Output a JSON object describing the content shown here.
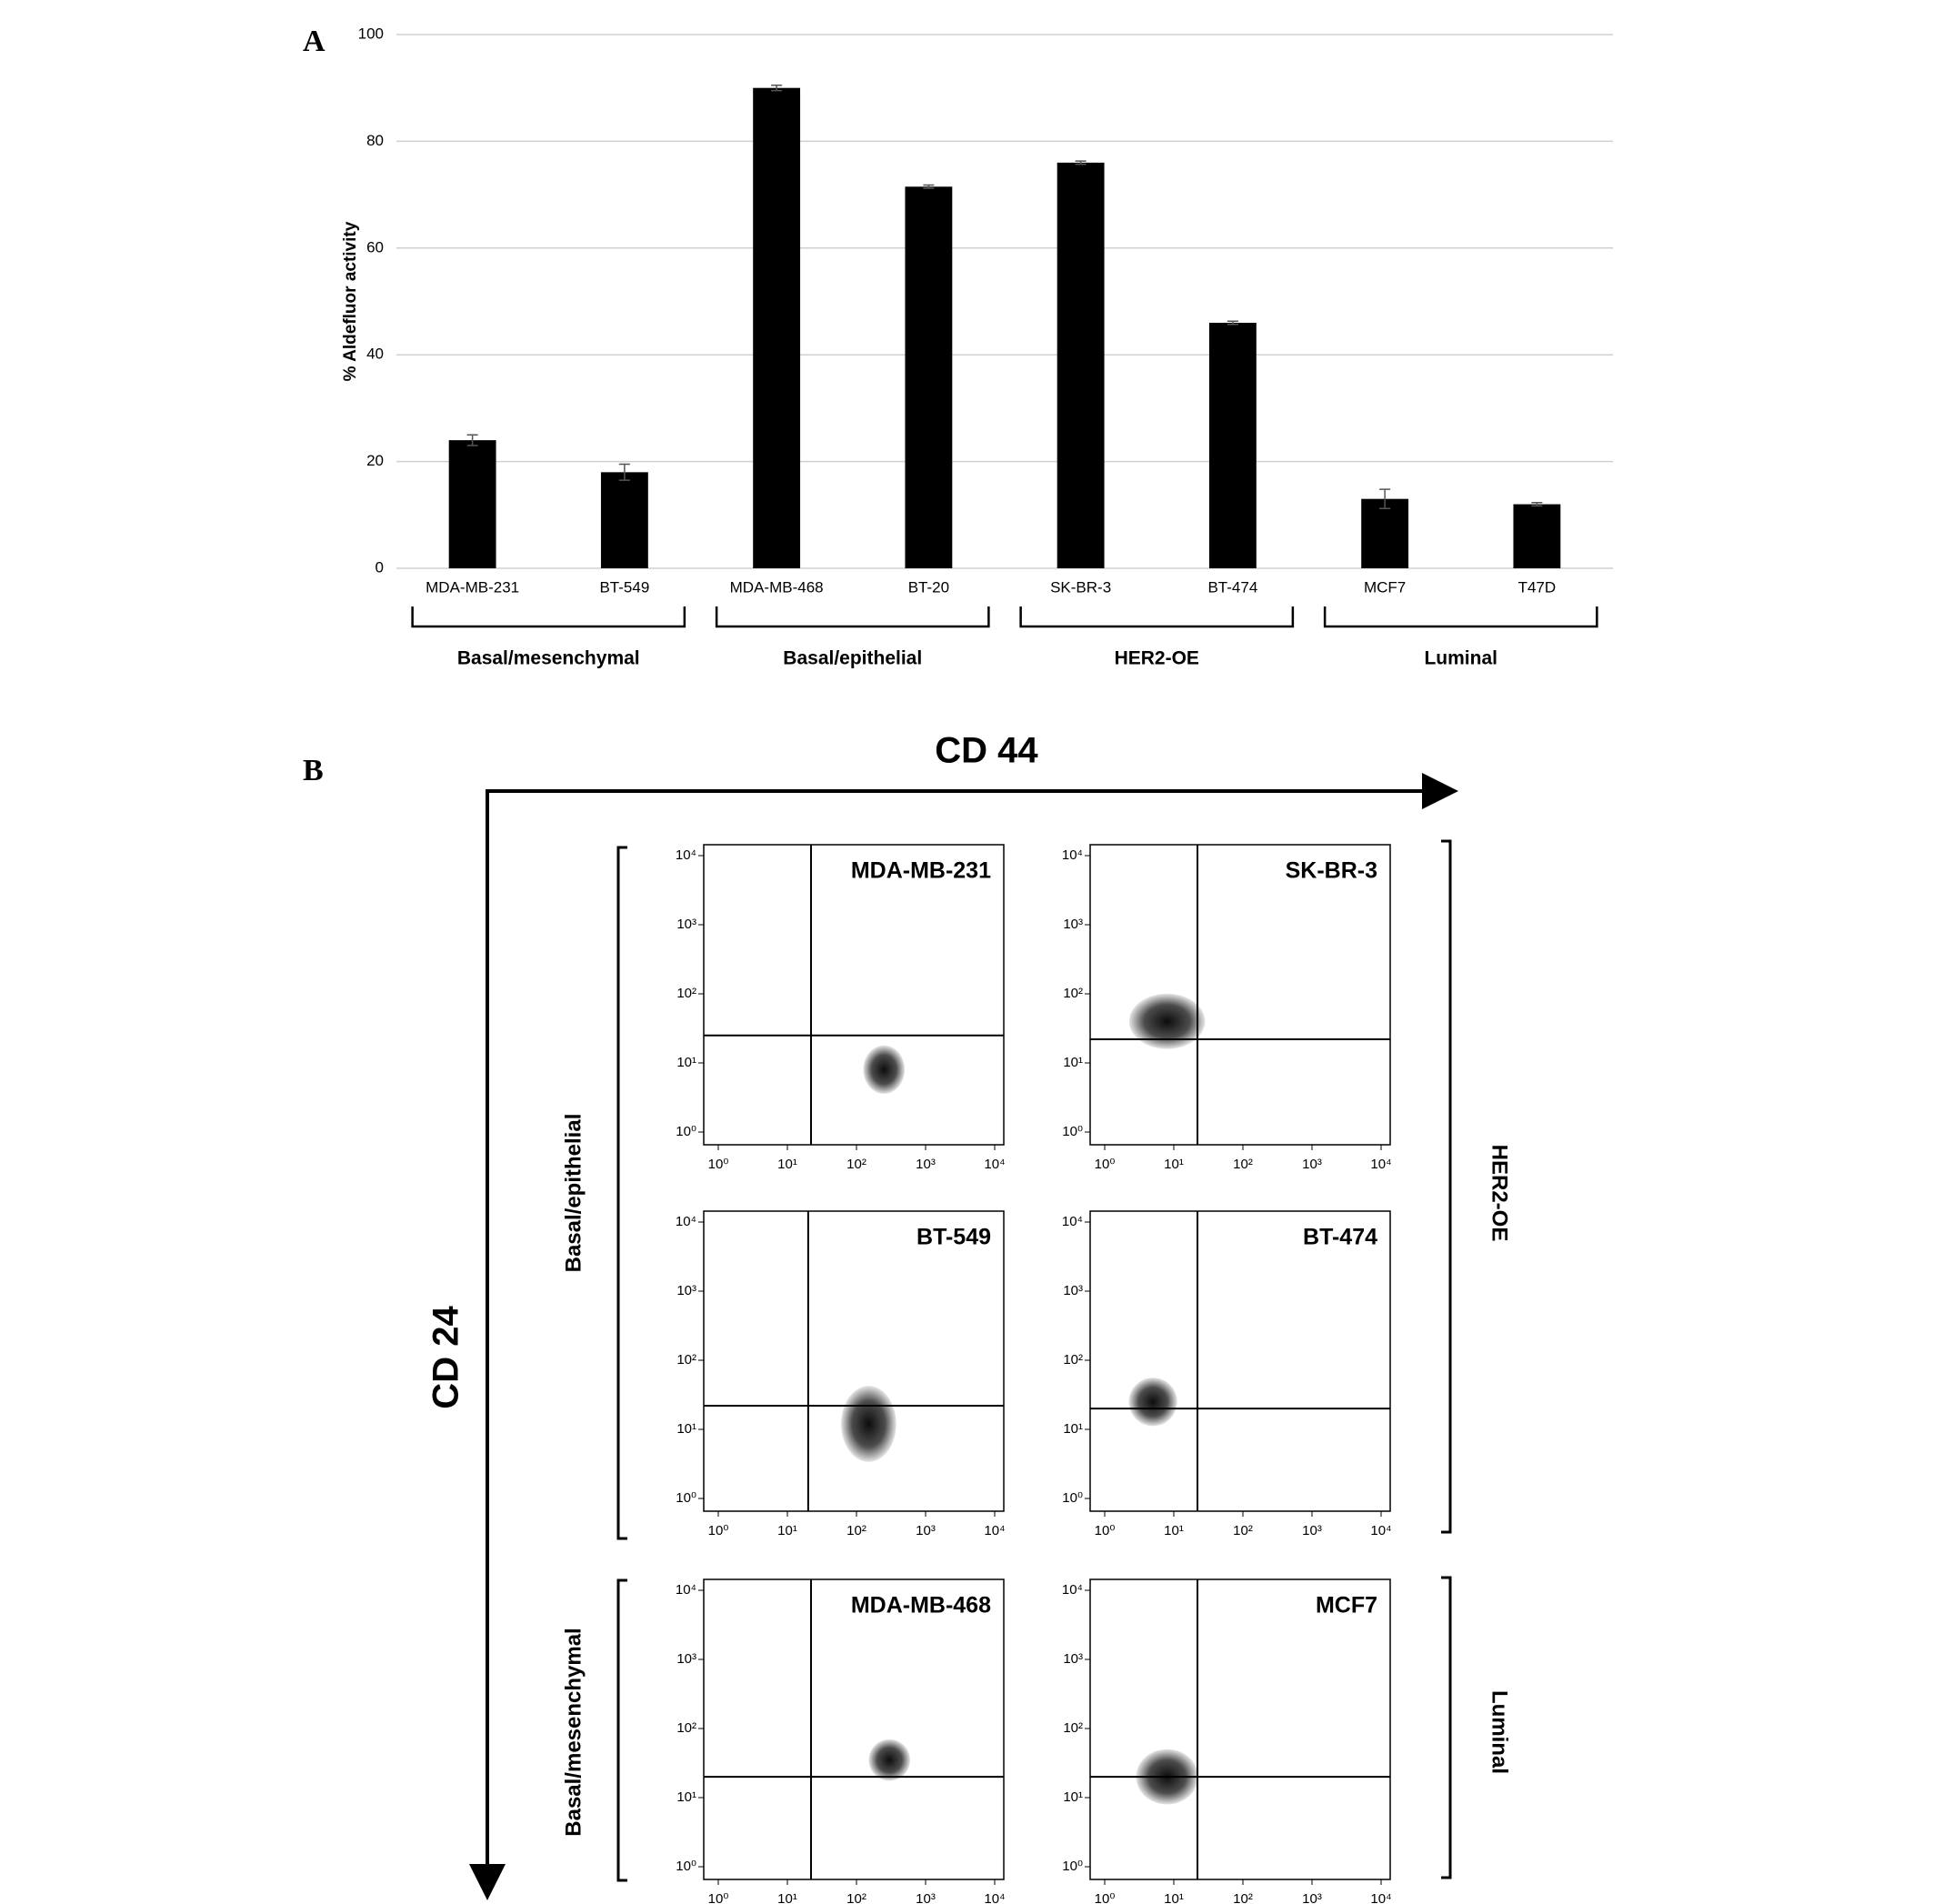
{
  "figure": {
    "panel_a": "A",
    "panel_b": "B",
    "x_axis_label": "CD 44",
    "y_axis_label": "CD 24",
    "left_groups": [
      "Basal/epithelial",
      "Basal/mesenchymal"
    ],
    "right_groups": [
      "HER2-OE",
      "Luminal"
    ]
  },
  "chart_data": [
    {
      "type": "bar",
      "ylabel": "% Aldefluor activity",
      "categories": [
        "MDA-MB-231",
        "BT-549",
        "MDA-MB-468",
        "BT-20",
        "SK-BR-3",
        "BT-474",
        "MCF7",
        "T47D"
      ],
      "values": [
        24,
        18,
        90,
        71.5,
        76,
        46,
        13,
        12
      ],
      "errors": [
        1,
        1.5,
        0.5,
        0.3,
        0.3,
        0.3,
        1.8,
        0.3
      ],
      "color": "#000000",
      "ylim": [
        0,
        100
      ],
      "yticks": [
        0,
        20,
        40,
        60,
        80,
        100
      ],
      "grid": true,
      "groups": [
        "Basal/mesenchymal",
        "Basal/epithelial",
        "HER2-OE",
        "Luminal"
      ]
    },
    {
      "type": "flow",
      "title": "MDA-MB-231",
      "log_scale": true,
      "xlim": [
        1,
        10000
      ],
      "ylim": [
        1,
        10000
      ],
      "xticks": [
        {
          "value": 1,
          "label": "10⁰"
        },
        {
          "value": 10,
          "label": "10¹"
        },
        {
          "value": 100,
          "label": "10²"
        },
        {
          "value": 1000,
          "label": "10³"
        },
        {
          "value": 10000,
          "label": "10⁴"
        }
      ],
      "yticks": [
        {
          "value": 1,
          "label": "10⁰"
        },
        {
          "value": 10,
          "label": "10¹"
        },
        {
          "value": 100,
          "label": "10²"
        },
        {
          "value": 1000,
          "label": "10³"
        },
        {
          "value": 10000,
          "label": "10⁴"
        }
      ],
      "gate": {
        "x": 22,
        "y": 25
      },
      "cloud": {
        "x": 250,
        "y": 8,
        "spread_x": 0.3,
        "spread_y": 0.35
      }
    },
    {
      "type": "flow",
      "title": "SK-BR-3",
      "log_scale": true,
      "xlim": [
        1,
        10000
      ],
      "ylim": [
        1,
        10000
      ],
      "xticks": [
        {
          "value": 1,
          "label": "10⁰"
        },
        {
          "value": 10,
          "label": "10¹"
        },
        {
          "value": 100,
          "label": "10²"
        },
        {
          "value": 1000,
          "label": "10³"
        },
        {
          "value": 10000,
          "label": "10⁴"
        }
      ],
      "yticks": [
        {
          "value": 1,
          "label": "10⁰"
        },
        {
          "value": 10,
          "label": "10¹"
        },
        {
          "value": 100,
          "label": "10²"
        },
        {
          "value": 1000,
          "label": "10³"
        },
        {
          "value": 10000,
          "label": "10⁴"
        }
      ],
      "gate": {
        "x": 22,
        "y": 22
      },
      "cloud": {
        "x": 8,
        "y": 40,
        "spread_x": 0.55,
        "spread_y": 0.4
      }
    },
    {
      "type": "flow",
      "title": "BT-549",
      "log_scale": true,
      "xlim": [
        1,
        10000
      ],
      "ylim": [
        1,
        10000
      ],
      "xticks": [
        {
          "value": 1,
          "label": "10⁰"
        },
        {
          "value": 10,
          "label": "10¹"
        },
        {
          "value": 100,
          "label": "10²"
        },
        {
          "value": 1000,
          "label": "10³"
        },
        {
          "value": 10000,
          "label": "10⁴"
        }
      ],
      "yticks": [
        {
          "value": 1,
          "label": "10⁰"
        },
        {
          "value": 10,
          "label": "10¹"
        },
        {
          "value": 100,
          "label": "10²"
        },
        {
          "value": 1000,
          "label": "10³"
        },
        {
          "value": 10000,
          "label": "10⁴"
        }
      ],
      "gate": {
        "x": 20,
        "y": 22
      },
      "cloud": {
        "x": 150,
        "y": 12,
        "spread_x": 0.4,
        "spread_y": 0.55
      }
    },
    {
      "type": "flow",
      "title": "BT-474",
      "log_scale": true,
      "xlim": [
        1,
        10000
      ],
      "ylim": [
        1,
        10000
      ],
      "xticks": [
        {
          "value": 1,
          "label": "10⁰"
        },
        {
          "value": 10,
          "label": "10¹"
        },
        {
          "value": 100,
          "label": "10²"
        },
        {
          "value": 1000,
          "label": "10³"
        },
        {
          "value": 10000,
          "label": "10⁴"
        }
      ],
      "yticks": [
        {
          "value": 1,
          "label": "10⁰"
        },
        {
          "value": 10,
          "label": "10¹"
        },
        {
          "value": 100,
          "label": "10²"
        },
        {
          "value": 1000,
          "label": "10³"
        },
        {
          "value": 10000,
          "label": "10⁴"
        }
      ],
      "gate": {
        "x": 22,
        "y": 20
      },
      "cloud": {
        "x": 5,
        "y": 25,
        "spread_x": 0.35,
        "spread_y": 0.35
      }
    },
    {
      "type": "flow",
      "title": "MDA-MB-468",
      "log_scale": true,
      "xlim": [
        1,
        10000
      ],
      "ylim": [
        1,
        10000
      ],
      "xticks": [
        {
          "value": 1,
          "label": "10⁰"
        },
        {
          "value": 10,
          "label": "10¹"
        },
        {
          "value": 100,
          "label": "10²"
        },
        {
          "value": 1000,
          "label": "10³"
        },
        {
          "value": 10000,
          "label": "10⁴"
        }
      ],
      "yticks": [
        {
          "value": 1,
          "label": "10⁰"
        },
        {
          "value": 10,
          "label": "10¹"
        },
        {
          "value": 100,
          "label": "10²"
        },
        {
          "value": 1000,
          "label": "10³"
        },
        {
          "value": 10000,
          "label": "10⁴"
        }
      ],
      "gate": {
        "x": 22,
        "y": 20
      },
      "cloud": {
        "x": 300,
        "y": 35,
        "spread_x": 0.3,
        "spread_y": 0.3
      }
    },
    {
      "type": "flow",
      "title": "MCF7",
      "log_scale": true,
      "xlim": [
        1,
        10000
      ],
      "ylim": [
        1,
        10000
      ],
      "xticks": [
        {
          "value": 1,
          "label": "10⁰"
        },
        {
          "value": 10,
          "label": "10¹"
        },
        {
          "value": 100,
          "label": "10²"
        },
        {
          "value": 1000,
          "label": "10³"
        },
        {
          "value": 10000,
          "label": "10⁴"
        }
      ],
      "yticks": [
        {
          "value": 1,
          "label": "10⁰"
        },
        {
          "value": 10,
          "label": "10¹"
        },
        {
          "value": 100,
          "label": "10²"
        },
        {
          "value": 1000,
          "label": "10³"
        },
        {
          "value": 10000,
          "label": "10⁴"
        }
      ],
      "gate": {
        "x": 22,
        "y": 20
      },
      "cloud": {
        "x": 8,
        "y": 20,
        "spread_x": 0.45,
        "spread_y": 0.4
      }
    }
  ]
}
